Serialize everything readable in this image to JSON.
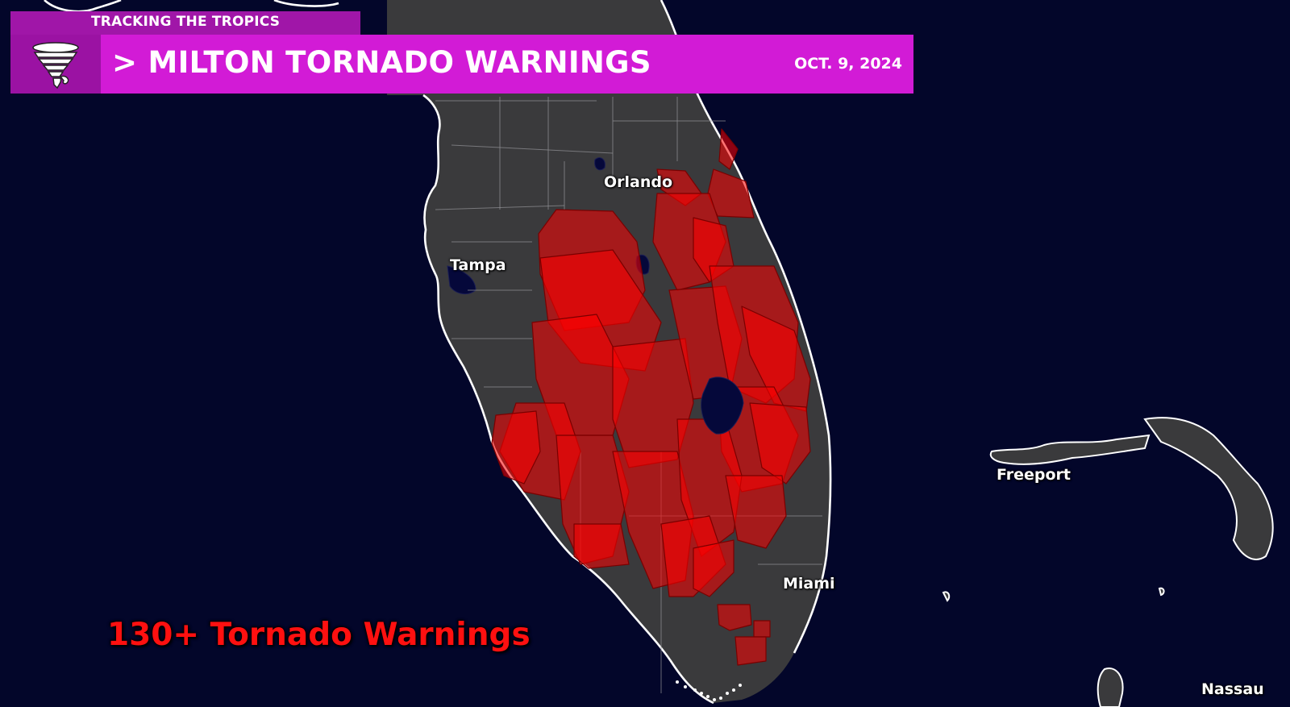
{
  "header": {
    "brand_tab": "TRACKING THE TROPICS",
    "title": "> MILTON TORNADO WARNINGS",
    "date": "OCT. 9, 2024",
    "icon": "tornado-icon"
  },
  "map": {
    "cities": [
      {
        "name": "Orlando"
      },
      {
        "name": "Tampa"
      },
      {
        "name": "Freeport"
      },
      {
        "name": "Miami"
      },
      {
        "name": "Nassau"
      }
    ],
    "warning_color": "#ff0000",
    "land_color": "#3a3a3c",
    "water_color": "#03062a"
  },
  "annotation": {
    "warning_count_label": "130+ Tornado Warnings"
  },
  "colors": {
    "banner_dark": "#9b12a3",
    "banner_bright": "#d21bd6",
    "count_text": "#ff1010"
  }
}
